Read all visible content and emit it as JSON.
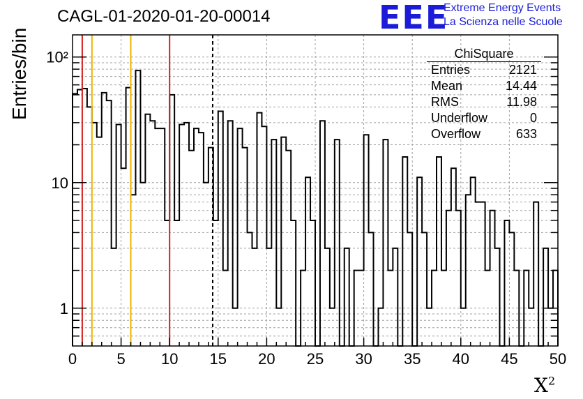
{
  "header": {
    "title": "CAGL-01-2020-01-20-00014",
    "logo_text": "EEE",
    "brand_line1": "Extreme Energy Events",
    "brand_line2": "La Scienza nelle Scuole",
    "brand_color": "#1c1cd8"
  },
  "stats": {
    "name": "ChiSquare",
    "rows": [
      {
        "label": "Entries",
        "value": "2121"
      },
      {
        "label": "Mean",
        "value": "14.44"
      },
      {
        "label": "RMS",
        "value": "11.98"
      },
      {
        "label": "Underflow",
        "value": "0"
      },
      {
        "label": "Overflow",
        "value": "633"
      }
    ]
  },
  "chart_data": {
    "type": "histogram",
    "title": "CAGL-01-2020-01-20-00014",
    "xlabel": "X²",
    "ylabel": "Entries/bin",
    "xlim": [
      0,
      50
    ],
    "ylim": [
      0.5,
      150
    ],
    "y_scale": "log",
    "grid": true,
    "bin_width": 1,
    "x_ticks": [
      "0",
      "5",
      "10",
      "15",
      "20",
      "25",
      "30",
      "35",
      "40",
      "45",
      "50"
    ],
    "y_ticks": [
      {
        "value": 1,
        "label": "1"
      },
      {
        "value": 10,
        "label": "10"
      },
      {
        "value": 100,
        "label": "10²"
      }
    ],
    "half_bins": [
      51,
      55,
      56,
      40,
      30,
      23,
      52,
      45,
      3,
      29,
      13,
      57,
      8,
      78,
      10,
      35,
      31,
      27,
      27,
      5,
      50,
      5,
      29,
      30,
      18,
      27,
      25,
      10,
      19,
      5,
      37,
      2,
      31,
      1,
      27,
      19,
      4,
      3,
      36,
      28,
      3,
      22,
      1,
      23,
      18,
      5,
      0.3,
      2,
      11,
      5,
      0.3,
      31,
      3,
      1,
      22,
      0.3,
      3,
      0.3,
      2,
      2,
      24,
      4,
      0.3,
      1,
      22,
      2,
      3,
      0.3,
      16,
      4,
      0.3,
      11,
      4,
      1,
      2,
      16,
      2,
      6,
      13,
      6,
      1,
      8,
      11,
      7,
      7,
      2,
      6,
      3,
      0.3,
      5,
      4,
      2,
      0.3,
      2,
      1,
      7,
      0.3,
      3,
      1,
      2
    ],
    "vertical_lines": [
      {
        "x": 1,
        "color": "#d42020",
        "style": "solid"
      },
      {
        "x": 2,
        "color": "#f0b400",
        "style": "solid"
      },
      {
        "x": 6,
        "color": "#f0b400",
        "style": "solid"
      },
      {
        "x": 10,
        "color": "#d42020",
        "style": "solid"
      },
      {
        "x": 14.44,
        "color": "#000000",
        "style": "dashed"
      }
    ]
  }
}
